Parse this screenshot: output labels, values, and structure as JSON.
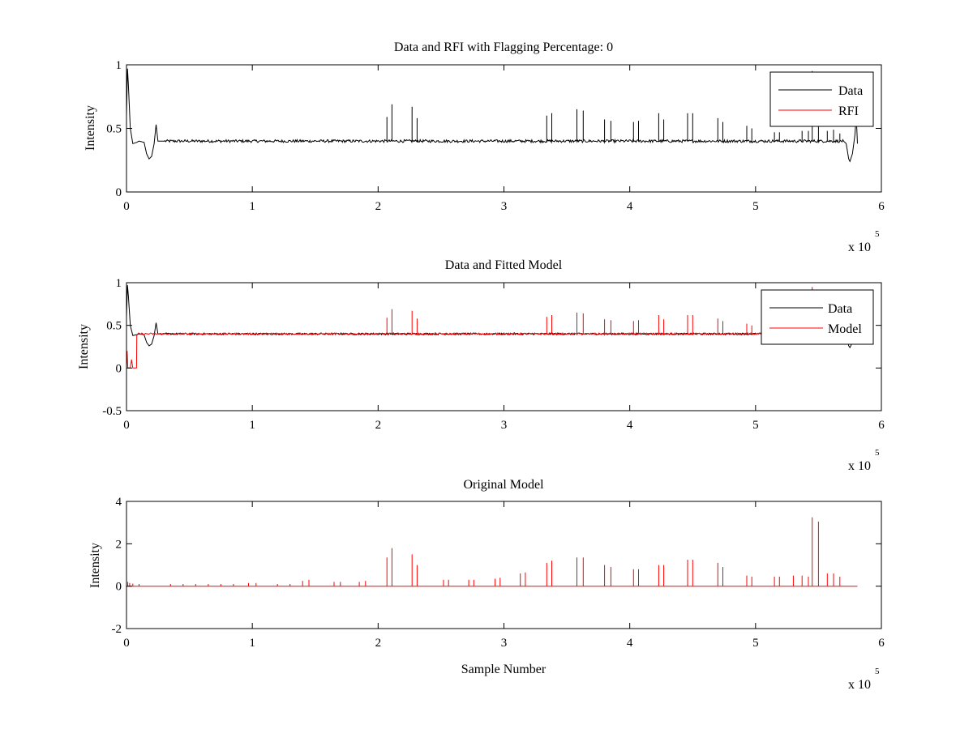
{
  "figure": {
    "background": "#ffffff",
    "colors": {
      "data": "#000000",
      "rfi": "#ff0000",
      "model": "#ff0000",
      "axes": "#000000"
    }
  },
  "chart_data": [
    {
      "type": "line",
      "title": "Data and RFI with Flagging Percentage: 0",
      "xlabel": "",
      "ylabel": "Intensity",
      "xlim": [
        0,
        600000
      ],
      "ylim": [
        0,
        1
      ],
      "xticks": [
        0,
        100000,
        200000,
        300000,
        400000,
        500000,
        600000
      ],
      "xtick_labels": [
        "0",
        "1",
        "2",
        "3",
        "4",
        "5",
        "6"
      ],
      "yticks": [
        0,
        0.5,
        1
      ],
      "ytick_labels": [
        "0",
        "0.5",
        "1"
      ],
      "x_multiplier": {
        "base": "x 10",
        "exponent": "5"
      },
      "legend": {
        "position": "top-right",
        "entries": [
          "Data",
          "RFI"
        ]
      },
      "series": [
        {
          "name": "Data",
          "color": "#000000",
          "baseline": 0.4,
          "edge_points": [
            [
              0,
              0.6
            ],
            [
              800,
              0.97
            ],
            [
              1500,
              0.85
            ],
            [
              3000,
              0.5
            ],
            [
              5000,
              0.38
            ],
            [
              8000,
              0.39
            ],
            [
              10000,
              0.4
            ],
            [
              14000,
              0.39
            ],
            [
              16000,
              0.3
            ],
            [
              18000,
              0.26
            ],
            [
              20000,
              0.28
            ],
            [
              22000,
              0.38
            ],
            [
              23500,
              0.53
            ],
            [
              25000,
              0.4
            ],
            [
              30000,
              0.4
            ],
            [
              570000,
              0.4
            ],
            [
              572000,
              0.38
            ],
            [
              574000,
              0.26
            ],
            [
              575000,
              0.24
            ],
            [
              577000,
              0.3
            ],
            [
              579000,
              0.45
            ],
            [
              580000,
              0.6
            ],
            [
              581000,
              0.38
            ]
          ],
          "spikes": [
            [
              207000,
              0.59
            ],
            [
              211000,
              0.69
            ],
            [
              227000,
              0.67
            ],
            [
              231000,
              0.58
            ],
            [
              334000,
              0.6
            ],
            [
              338000,
              0.62
            ],
            [
              358000,
              0.65
            ],
            [
              363000,
              0.64
            ],
            [
              380000,
              0.57
            ],
            [
              385000,
              0.56
            ],
            [
              403000,
              0.55
            ],
            [
              407000,
              0.56
            ],
            [
              423000,
              0.62
            ],
            [
              427000,
              0.57
            ],
            [
              446000,
              0.62
            ],
            [
              450000,
              0.62
            ],
            [
              470000,
              0.58
            ],
            [
              474000,
              0.55
            ],
            [
              493000,
              0.52
            ],
            [
              497000,
              0.5
            ],
            [
              515000,
              0.47
            ],
            [
              519000,
              0.47
            ],
            [
              537000,
              0.48
            ],
            [
              542000,
              0.48
            ],
            [
              545000,
              0.95
            ],
            [
              550000,
              0.53
            ],
            [
              557000,
              0.48
            ],
            [
              562000,
              0.49
            ],
            [
              567000,
              0.46
            ]
          ]
        },
        {
          "name": "RFI",
          "color": "#ff0000",
          "values": []
        }
      ]
    },
    {
      "type": "line",
      "title": "Data and Fitted Model",
      "xlabel": "",
      "ylabel": "Intensity",
      "xlim": [
        0,
        600000
      ],
      "ylim": [
        -0.5,
        1
      ],
      "xticks": [
        0,
        100000,
        200000,
        300000,
        400000,
        500000,
        600000
      ],
      "xtick_labels": [
        "0",
        "1",
        "2",
        "3",
        "4",
        "5",
        "6"
      ],
      "yticks": [
        -0.5,
        0,
        0.5,
        1
      ],
      "ytick_labels": [
        "-0.5",
        "0",
        "0.5",
        "1"
      ],
      "x_multiplier": {
        "base": "x 10",
        "exponent": "5"
      },
      "legend": {
        "position": "top-right",
        "entries": [
          "Data",
          "Model"
        ]
      },
      "series": [
        {
          "name": "Data",
          "color": "#000000",
          "baseline": 0.4,
          "edge_points": [
            [
              0,
              0.6
            ],
            [
              800,
              0.97
            ],
            [
              1500,
              0.85
            ],
            [
              3000,
              0.5
            ],
            [
              5000,
              0.38
            ],
            [
              8000,
              0.39
            ],
            [
              10000,
              0.4
            ],
            [
              14000,
              0.39
            ],
            [
              16000,
              0.3
            ],
            [
              18000,
              0.26
            ],
            [
              20000,
              0.28
            ],
            [
              22000,
              0.38
            ],
            [
              23500,
              0.53
            ],
            [
              25000,
              0.4
            ],
            [
              30000,
              0.4
            ],
            [
              570000,
              0.4
            ],
            [
              572000,
              0.38
            ],
            [
              574000,
              0.26
            ],
            [
              575000,
              0.24
            ],
            [
              577000,
              0.3
            ],
            [
              579000,
              0.45
            ],
            [
              580000,
              0.6
            ],
            [
              581000,
              0.38
            ]
          ]
        },
        {
          "name": "Model",
          "color": "#ff0000",
          "baseline": 0.4,
          "edge_points": [
            [
              0,
              0.0
            ],
            [
              500,
              0.2
            ],
            [
              1000,
              0.0
            ],
            [
              3000,
              0.0
            ],
            [
              4000,
              0.1
            ],
            [
              5000,
              0.0
            ],
            [
              8000,
              0.0
            ],
            [
              8200,
              0.38
            ],
            [
              9000,
              0.4
            ],
            [
              570000,
              0.4
            ]
          ],
          "spikes": [
            [
              207000,
              0.59
            ],
            [
              211000,
              0.69
            ],
            [
              227000,
              0.67
            ],
            [
              231000,
              0.58
            ],
            [
              334000,
              0.6
            ],
            [
              338000,
              0.62
            ],
            [
              358000,
              0.65
            ],
            [
              363000,
              0.64
            ],
            [
              380000,
              0.57
            ],
            [
              385000,
              0.56
            ],
            [
              403000,
              0.55
            ],
            [
              407000,
              0.56
            ],
            [
              423000,
              0.62
            ],
            [
              427000,
              0.57
            ],
            [
              446000,
              0.62
            ],
            [
              450000,
              0.62
            ],
            [
              470000,
              0.58
            ],
            [
              474000,
              0.55
            ],
            [
              493000,
              0.52
            ],
            [
              497000,
              0.5
            ],
            [
              515000,
              0.47
            ],
            [
              519000,
              0.47
            ],
            [
              537000,
              0.48
            ],
            [
              542000,
              0.48
            ],
            [
              545000,
              0.95
            ],
            [
              550000,
              0.53
            ],
            [
              557000,
              0.48
            ],
            [
              562000,
              0.49
            ],
            [
              567000,
              0.46
            ]
          ]
        }
      ]
    },
    {
      "type": "line",
      "title": "Original Model",
      "xlabel": "Sample Number",
      "ylabel": "Intensity",
      "xlim": [
        0,
        600000
      ],
      "ylim": [
        -2,
        4
      ],
      "xticks": [
        0,
        100000,
        200000,
        300000,
        400000,
        500000,
        600000
      ],
      "xtick_labels": [
        "0",
        "1",
        "2",
        "3",
        "4",
        "5",
        "6"
      ],
      "yticks": [
        -2,
        0,
        2,
        4
      ],
      "ytick_labels": [
        "-2",
        "0",
        "2",
        "4"
      ],
      "x_multiplier": {
        "base": "x 10",
        "exponent": "5"
      },
      "series": [
        {
          "name": "Model",
          "color": "#ff0000",
          "baseline": 0.0,
          "x_end": 581000,
          "spikes": [
            [
              1000,
              0.2
            ],
            [
              2500,
              0.15
            ],
            [
              5000,
              0.12
            ],
            [
              10000,
              0.1
            ],
            [
              35000,
              0.1
            ],
            [
              45000,
              0.1
            ],
            [
              55000,
              0.1
            ],
            [
              65000,
              0.1
            ],
            [
              75000,
              0.1
            ],
            [
              85000,
              0.1
            ],
            [
              97000,
              0.15
            ],
            [
              103000,
              0.15
            ],
            [
              120000,
              0.1
            ],
            [
              130000,
              0.1
            ],
            [
              140000,
              0.25
            ],
            [
              145000,
              0.3
            ],
            [
              165000,
              0.2
            ],
            [
              170000,
              0.2
            ],
            [
              185000,
              0.2
            ],
            [
              190000,
              0.25
            ],
            [
              207000,
              1.35
            ],
            [
              211000,
              1.8
            ],
            [
              227000,
              1.5
            ],
            [
              231000,
              1.0
            ],
            [
              252000,
              0.3
            ],
            [
              256000,
              0.3
            ],
            [
              272000,
              0.3
            ],
            [
              276000,
              0.3
            ],
            [
              293000,
              0.35
            ],
            [
              297000,
              0.4
            ],
            [
              313000,
              0.6
            ],
            [
              317000,
              0.65
            ],
            [
              334000,
              1.1
            ],
            [
              338000,
              1.2
            ],
            [
              358000,
              1.35
            ],
            [
              363000,
              1.35
            ],
            [
              380000,
              1.0
            ],
            [
              385000,
              0.9
            ],
            [
              403000,
              0.8
            ],
            [
              407000,
              0.8
            ],
            [
              423000,
              1.0
            ],
            [
              427000,
              1.0
            ],
            [
              446000,
              1.25
            ],
            [
              450000,
              1.25
            ],
            [
              470000,
              1.1
            ],
            [
              474000,
              0.9
            ],
            [
              493000,
              0.5
            ],
            [
              497000,
              0.45
            ],
            [
              515000,
              0.45
            ],
            [
              519000,
              0.45
            ],
            [
              530000,
              0.5
            ],
            [
              537000,
              0.5
            ],
            [
              542000,
              0.45
            ],
            [
              545000,
              3.25
            ],
            [
              550000,
              3.05
            ],
            [
              557000,
              0.6
            ],
            [
              562000,
              0.6
            ],
            [
              567000,
              0.45
            ]
          ]
        }
      ]
    }
  ]
}
